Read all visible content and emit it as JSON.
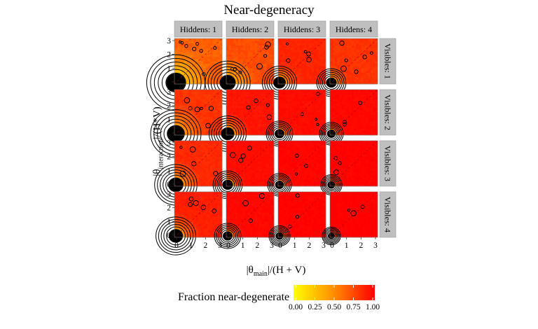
{
  "chart_data": {
    "type": "heatmap",
    "title": "Near-degeneracy",
    "xlabel": {
      "main": "θ",
      "sub": "main",
      "suffix": "/(H + V)"
    },
    "ylabel": {
      "main": "θ",
      "sub": "interaction",
      "suffix": "/(H*V)"
    },
    "xlim": [
      0,
      3
    ],
    "ylim": [
      0,
      3
    ],
    "x_ticks": [
      "0",
      "1",
      "2",
      "3"
    ],
    "y_ticks": [
      "0",
      "1",
      "2",
      "3"
    ],
    "facet_columns": [
      "Hiddens: 1",
      "Hiddens: 2",
      "Hiddens: 3",
      "Hiddens: 4"
    ],
    "facet_rows": [
      "Visibles: 1",
      "Visibles: 2",
      "Visibles: 3",
      "Visibles: 4"
    ],
    "legend": {
      "title": "Fraction near-degenerate",
      "ticks": [
        "0.00",
        "0.25",
        "0.50",
        "0.75",
        "1.00"
      ],
      "colors": [
        "#FFFF00",
        "#FF0000"
      ],
      "placement": "bottom"
    },
    "base_fraction": [
      [
        0.62,
        0.7,
        0.86,
        0.8
      ],
      [
        0.8,
        0.92,
        0.95,
        0.97
      ],
      [
        0.84,
        0.95,
        0.98,
        0.99
      ],
      [
        0.88,
        0.97,
        0.99,
        1.0
      ]
    ],
    "degenerate_core_radius": [
      [
        1.1,
        0.85,
        0.65,
        0.55
      ],
      [
        0.95,
        0.7,
        0.5,
        0.45
      ],
      [
        0.8,
        0.55,
        0.45,
        0.4
      ],
      [
        0.75,
        0.5,
        0.4,
        0.35
      ]
    ],
    "reference_line": "y = x (dashed)",
    "contour_lines": true,
    "grid": false
  }
}
